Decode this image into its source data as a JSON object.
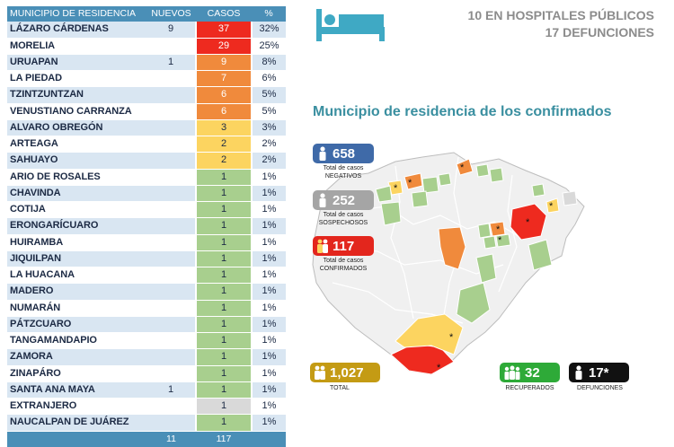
{
  "header": {
    "col_municipio": "MUNICIPIO DE RESIDENCIA",
    "col_nuevos": "NUEVOS",
    "col_casos": "CASOS",
    "col_pct": "%"
  },
  "colors": {
    "red": "#ee2a1f",
    "orange": "#f08a3c",
    "yellow": "#fcd460",
    "green": "#a8cf8e",
    "gray": "#d9d9d9",
    "header_blue": "#4a8fb7"
  },
  "rows": [
    {
      "municipio": "LÁZARO CÁRDENAS",
      "nuevos": "9",
      "casos": "37",
      "pct": "32%",
      "color": "#ee2a1f"
    },
    {
      "municipio": "MORELIA",
      "nuevos": "",
      "casos": "29",
      "pct": "25%",
      "color": "#ee2a1f"
    },
    {
      "municipio": "URUAPAN",
      "nuevos": "1",
      "casos": "9",
      "pct": "8%",
      "color": "#f08a3c"
    },
    {
      "municipio": "LA PIEDAD",
      "nuevos": "",
      "casos": "7",
      "pct": "6%",
      "color": "#f08a3c"
    },
    {
      "municipio": "TZINTZUNTZAN",
      "nuevos": "",
      "casos": "6",
      "pct": "5%",
      "color": "#f08a3c"
    },
    {
      "municipio": "VENUSTIANO CARRANZA",
      "nuevos": "",
      "casos": "6",
      "pct": "5%",
      "color": "#f08a3c"
    },
    {
      "municipio": "ALVARO OBREGÓN",
      "nuevos": "",
      "casos": "3",
      "pct": "3%",
      "color": "#fcd460"
    },
    {
      "municipio": "ARTEAGA",
      "nuevos": "",
      "casos": "2",
      "pct": "2%",
      "color": "#fcd460"
    },
    {
      "municipio": "SAHUAYO",
      "nuevos": "",
      "casos": "2",
      "pct": "2%",
      "color": "#fcd460"
    },
    {
      "municipio": "ARIO DE ROSALES",
      "nuevos": "",
      "casos": "1",
      "pct": "1%",
      "color": "#a8cf8e"
    },
    {
      "municipio": "CHAVINDA",
      "nuevos": "",
      "casos": "1",
      "pct": "1%",
      "color": "#a8cf8e"
    },
    {
      "municipio": "COTIJA",
      "nuevos": "",
      "casos": "1",
      "pct": "1%",
      "color": "#a8cf8e"
    },
    {
      "municipio": "ERONGARÍCUARO",
      "nuevos": "",
      "casos": "1",
      "pct": "1%",
      "color": "#a8cf8e"
    },
    {
      "municipio": "HUIRAMBA",
      "nuevos": "",
      "casos": "1",
      "pct": "1%",
      "color": "#a8cf8e"
    },
    {
      "municipio": "JIQUILPAN",
      "nuevos": "",
      "casos": "1",
      "pct": "1%",
      "color": "#a8cf8e"
    },
    {
      "municipio": "LA HUACANA",
      "nuevos": "",
      "casos": "1",
      "pct": "1%",
      "color": "#a8cf8e"
    },
    {
      "municipio": "MADERO",
      "nuevos": "",
      "casos": "1",
      "pct": "1%",
      "color": "#a8cf8e"
    },
    {
      "municipio": "NUMARÁN",
      "nuevos": "",
      "casos": "1",
      "pct": "1%",
      "color": "#a8cf8e"
    },
    {
      "municipio": "PÁTZCUARO",
      "nuevos": "",
      "casos": "1",
      "pct": "1%",
      "color": "#a8cf8e"
    },
    {
      "municipio": "TANGAMANDAPIO",
      "nuevos": "",
      "casos": "1",
      "pct": "1%",
      "color": "#a8cf8e"
    },
    {
      "municipio": "ZAMORA",
      "nuevos": "",
      "casos": "1",
      "pct": "1%",
      "color": "#a8cf8e"
    },
    {
      "municipio": "ZINAPÁRO",
      "nuevos": "",
      "casos": "1",
      "pct": "1%",
      "color": "#a8cf8e"
    },
    {
      "municipio": "SANTA ANA MAYA",
      "nuevos": "1",
      "casos": "1",
      "pct": "1%",
      "color": "#a8cf8e"
    },
    {
      "municipio": "EXTRANJERO",
      "nuevos": "",
      "casos": "1",
      "pct": "1%",
      "color": "#d9d9d9"
    },
    {
      "municipio": "NAUCALPAN DE JUÁREZ",
      "nuevos": "",
      "casos": "1",
      "pct": "1%",
      "color": "#a8cf8e"
    }
  ],
  "totals": {
    "label": "",
    "nuevos": "11",
    "casos": "117",
    "pct": ""
  },
  "hospitals": {
    "line1": "10 EN HOSPITALES PÚBLICOS",
    "line2": "17 DEFUNCIONES",
    "icon": "hospital-bed-icon"
  },
  "map_title": "Municipio de residencia de los confirmados",
  "badges": {
    "negativos": {
      "value": "658",
      "caption_1": "Total de casos",
      "caption_2": "NEGATIVOS",
      "color": "#3f6aa8",
      "icon": "person-icon"
    },
    "sospechosos": {
      "value": "252",
      "caption_1": "Total de casos",
      "caption_2": "SOSPECHOSOS",
      "color": "#a5a5a5",
      "icon": "person-icon"
    },
    "confirmados": {
      "value": "117",
      "caption_1": "Total de casos",
      "caption_2": "CONFIRMADOS",
      "color": "#e3261d",
      "icon": "people-icon"
    },
    "total": {
      "value": "1,027",
      "caption": "TOTAL",
      "color": "#c49b14",
      "icon": "people-icon"
    },
    "recuperados": {
      "value": "32",
      "caption": "RECUPERADOS",
      "color": "#2eaa38",
      "icon": "group-icon"
    },
    "defunciones": {
      "value": "17*",
      "caption": "DEFUNCIONES",
      "color": "#111111",
      "icon": "person-icon"
    }
  }
}
